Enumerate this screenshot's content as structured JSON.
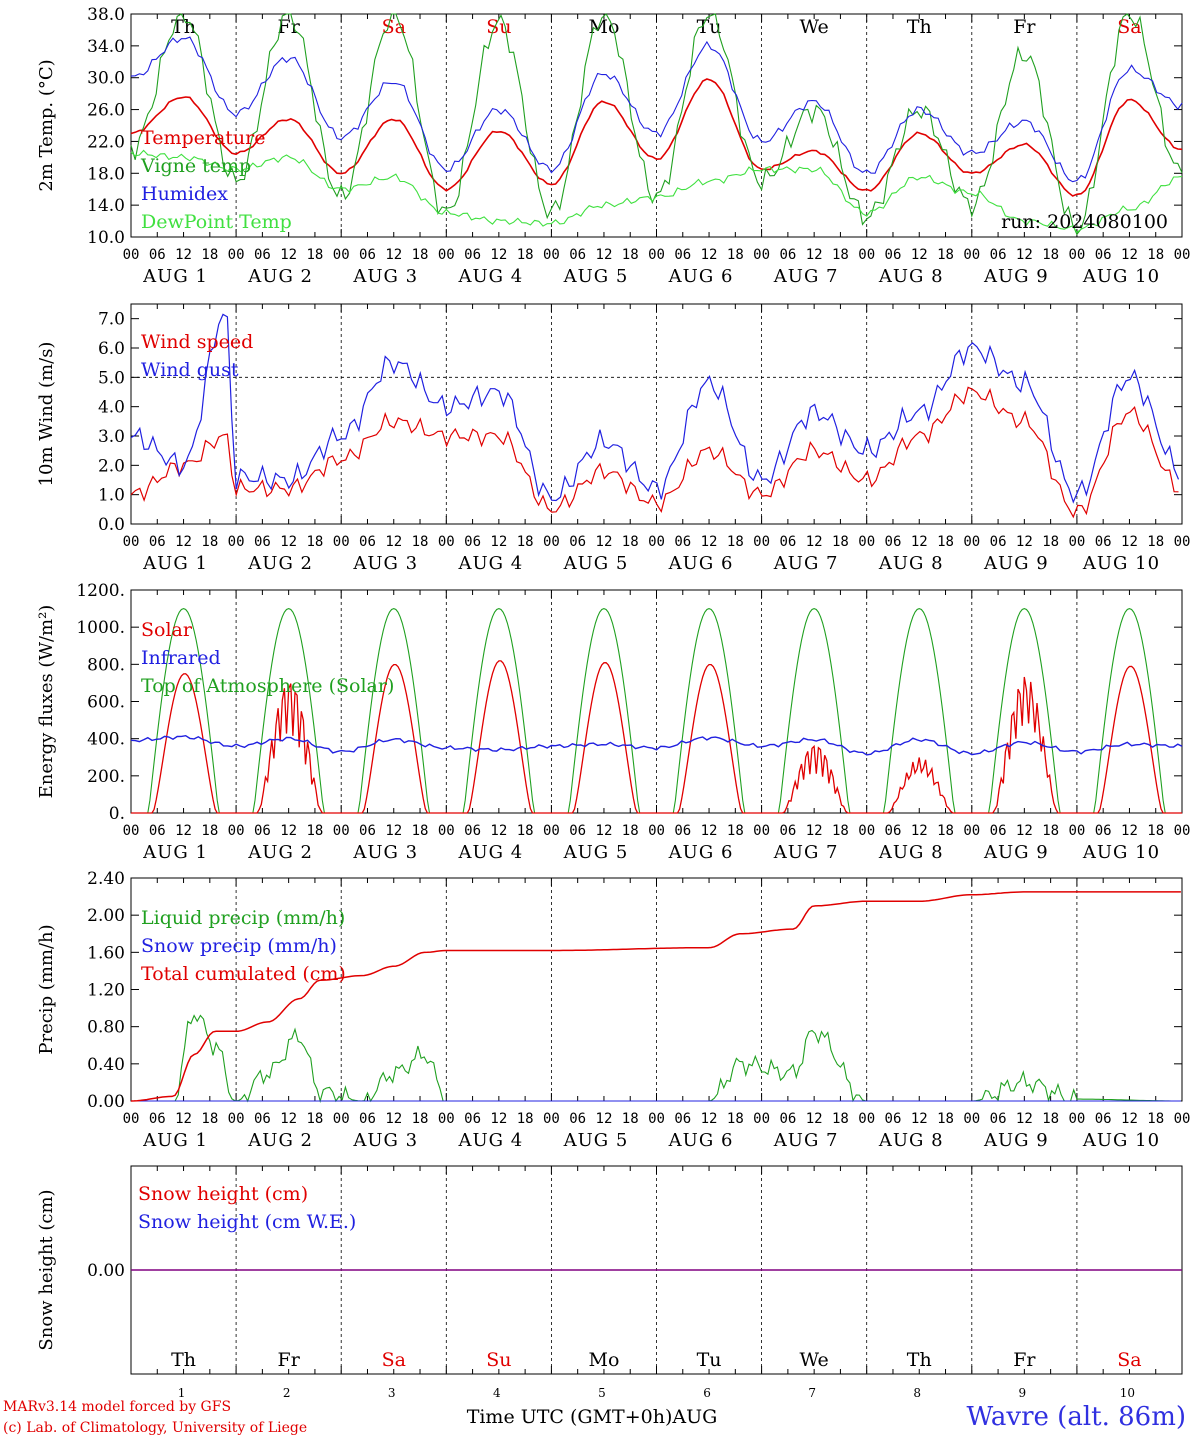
{
  "station": "Wavre (alt. 86m)",
  "credits": [
    "MARv3.14 model forced by GFS",
    "(c) Lab. of Climatology, University of Liege"
  ],
  "time_axis": {
    "label": "Time UTC (GMT+0h)AUG",
    "hour_ticks": [
      "00",
      "06",
      "12",
      "18"
    ],
    "dates": [
      "AUG 1",
      "AUG 2",
      "AUG 3",
      "AUG 4",
      "AUG 5",
      "AUG 6",
      "AUG 7",
      "AUG 8",
      "AUG 9",
      "AUG 10"
    ],
    "day_numbers": [
      "1",
      "2",
      "3",
      "4",
      "5",
      "6",
      "7",
      "8",
      "9",
      "10"
    ],
    "weekdays": [
      "Th",
      "Fr",
      "Sa",
      "Su",
      "Mo",
      "Tu",
      "We",
      "Th",
      "Fr",
      "Sa"
    ],
    "weekend_flags": [
      false,
      false,
      true,
      true,
      false,
      false,
      false,
      false,
      false,
      true
    ]
  },
  "colors": {
    "red": "#e00000",
    "green": "#20a020",
    "blue": "#2020e0",
    "lightgreen": "#40e040",
    "purple": "#800080",
    "text": "#000000"
  },
  "chart_data": [
    {
      "type": "line",
      "ylabel": "2m Temp. (°C)",
      "ylim": [
        10,
        38
      ],
      "yticks": [
        "10.0",
        "14.0",
        "18.0",
        "22.0",
        "26.0",
        "30.0",
        "34.0",
        "38.0"
      ],
      "annotation": "run: 2024080100",
      "x": [
        0,
        0.5,
        1,
        1.5,
        2,
        2.5,
        3,
        3.5,
        4,
        4.5,
        5,
        5.5,
        6,
        6.5,
        7,
        7.5,
        8,
        8.5,
        9,
        9.5,
        10
      ],
      "series": [
        {
          "name": "Temperature",
          "color": "red",
          "values": [
            23,
            27.6,
            20.5,
            24.8,
            18,
            24.8,
            16,
            23.3,
            16.6,
            27,
            19.8,
            29.8,
            18.5,
            20.8,
            15.8,
            23,
            18,
            21.6,
            15.2,
            27.2,
            21
          ]
        },
        {
          "name": "Vigne temp",
          "color": "green",
          "values": [
            21,
            38,
            17,
            38,
            15,
            38,
            13,
            37,
            13,
            38,
            15,
            38,
            17,
            26,
            12.5,
            26,
            14,
            33,
            11,
            38,
            18
          ]
        },
        {
          "name": "Humidex",
          "color": "blue",
          "values": [
            30,
            35,
            25.5,
            32.5,
            22.5,
            29.5,
            18.5,
            26,
            18.5,
            30.5,
            23,
            34,
            22,
            27,
            18,
            26,
            20.5,
            24.5,
            17,
            31,
            26.5
          ]
        },
        {
          "name": "DewPoint Temp",
          "color": "lightgreen",
          "values": [
            20.5,
            20,
            18.5,
            20,
            16,
            17.5,
            13,
            12,
            11.7,
            14,
            15,
            17,
            18.5,
            18.5,
            13,
            17.5,
            15.5,
            12,
            11,
            13.5,
            17.5
          ]
        }
      ]
    },
    {
      "type": "line",
      "ylabel": "10m Wind (m/s)",
      "ylim": [
        0,
        7.5
      ],
      "yticks": [
        "0.0",
        "1.0",
        "2.0",
        "3.0",
        "4.0",
        "5.0",
        "6.0",
        "7.0"
      ],
      "reference_line": 5.0,
      "x": [
        0,
        0.5,
        0.9,
        1,
        1.5,
        2,
        2.5,
        3,
        3.5,
        4,
        4.5,
        5,
        5.5,
        6,
        6.5,
        7,
        7.5,
        8,
        8.5,
        9,
        9.5,
        10
      ],
      "series": [
        {
          "name": "Wind speed",
          "color": "red",
          "values": [
            1.0,
            2.0,
            3.0,
            1.2,
            1.2,
            2.2,
            3.5,
            3.0,
            3.0,
            0.5,
            1.8,
            0.7,
            2.5,
            1.0,
            2.5,
            1.5,
            3.0,
            4.5,
            3.5,
            0.4,
            3.8,
            1.2
          ]
        },
        {
          "name": "Wind gust",
          "color": "blue",
          "values": [
            3.0,
            2.0,
            7.2,
            1.6,
            1.5,
            3.0,
            5.5,
            4.0,
            4.5,
            0.9,
            2.8,
            1.2,
            4.8,
            1.5,
            3.8,
            2.5,
            3.8,
            6.0,
            4.8,
            1.0,
            5.0,
            1.8
          ]
        }
      ]
    },
    {
      "type": "line",
      "ylabel": "Energy fluxes (W/m²)",
      "ylim": [
        0,
        1200
      ],
      "yticks": [
        "0.",
        "200.",
        "400.",
        "600.",
        "800.",
        "1000.",
        "1200."
      ],
      "solar_daily_peaks": [
        750,
        730,
        800,
        820,
        810,
        800,
        380,
        300,
        750,
        790
      ],
      "toa_daily_peak": 1100,
      "infrared_values": [
        390,
        410,
        360,
        400,
        330,
        395,
        350,
        340,
        360,
        370,
        350,
        405,
        360,
        395,
        320,
        395,
        320,
        380,
        330,
        370,
        360
      ],
      "series": [
        {
          "name": "Solar",
          "color": "red"
        },
        {
          "name": "Infrared",
          "color": "blue"
        },
        {
          "name": "Top of Atmosphere (Solar)",
          "color": "green"
        }
      ]
    },
    {
      "type": "line",
      "ylabel": "Precip (mm/h)",
      "ylim": [
        0,
        2.4
      ],
      "yticks": [
        "0.00",
        "0.40",
        "0.80",
        "1.20",
        "1.60",
        "2.00",
        "2.40"
      ],
      "x": [
        0,
        0.4,
        0.6,
        0.8,
        1.0,
        1.3,
        1.6,
        1.8,
        2.2,
        2.5,
        2.8,
        3.0,
        4.0,
        5.5,
        5.8,
        6.3,
        6.5,
        7.0,
        7.5,
        8.0,
        8.5,
        9.0,
        10.0
      ],
      "series": [
        {
          "name": "Liquid precip (mm/h)",
          "color": "green",
          "values": [
            0,
            0,
            0.95,
            0.6,
            0,
            0.3,
            0.7,
            0.1,
            0,
            0.3,
            0.5,
            0,
            0,
            0,
            0.4,
            0.3,
            0.75,
            0,
            0,
            0,
            0.2,
            0.02,
            0
          ]
        },
        {
          "name": "Snow precip (mm/h)",
          "color": "blue",
          "values": [
            0,
            0,
            0,
            0,
            0,
            0,
            0,
            0,
            0,
            0,
            0,
            0,
            0,
            0,
            0,
            0,
            0,
            0,
            0,
            0,
            0,
            0,
            0
          ]
        },
        {
          "name": "Total cumulated (cm)",
          "color": "red",
          "values": [
            0,
            0.05,
            0.5,
            0.75,
            0.75,
            0.85,
            1.1,
            1.3,
            1.35,
            1.45,
            1.6,
            1.62,
            1.62,
            1.65,
            1.8,
            1.85,
            2.1,
            2.15,
            2.15,
            2.22,
            2.25,
            2.25,
            2.25
          ]
        }
      ]
    },
    {
      "type": "line",
      "ylabel": "Snow height (cm)",
      "yticks": [
        "0.00"
      ],
      "series": [
        {
          "name": "Snow height (cm)",
          "color": "red",
          "values": [
            0,
            0
          ]
        },
        {
          "name": "Snow height (cm W.E.)",
          "color": "blue",
          "values": [
            0,
            0
          ]
        }
      ]
    }
  ]
}
